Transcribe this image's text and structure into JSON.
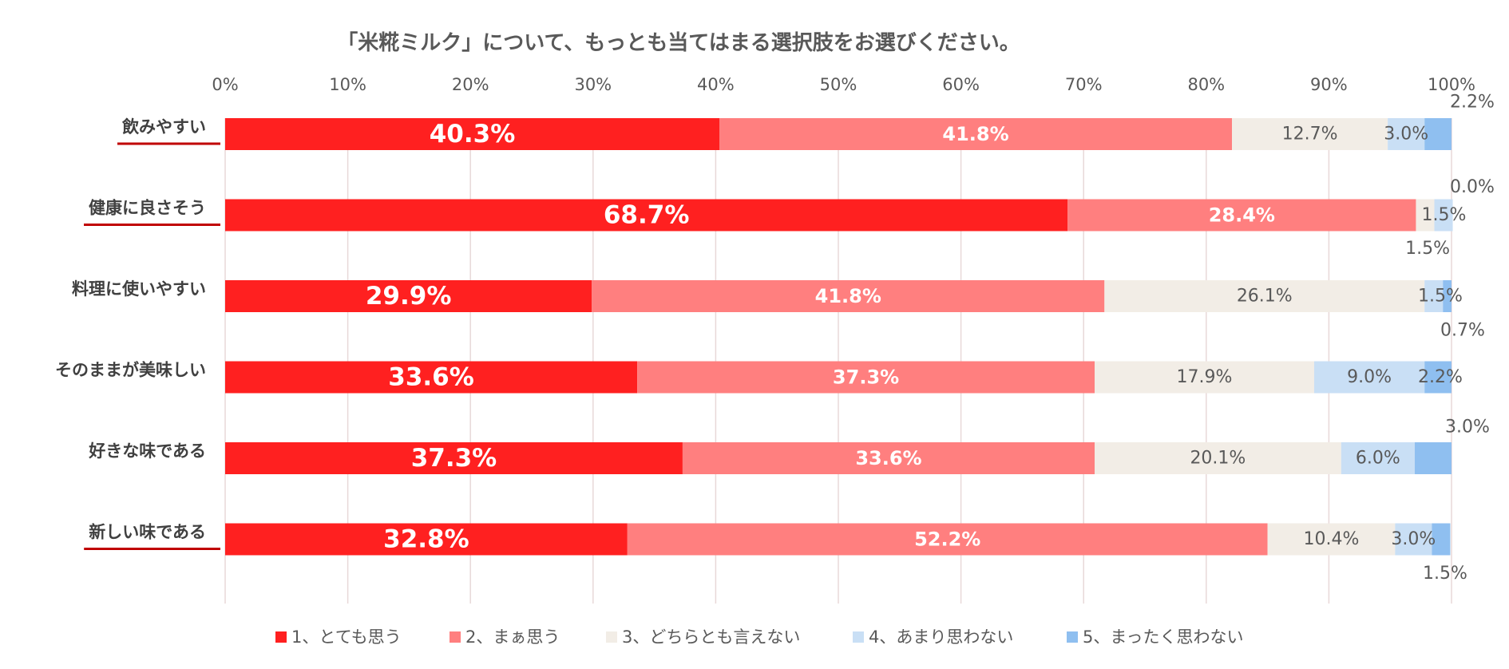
{
  "chart_data": {
    "type": "bar",
    "orientation": "horizontal",
    "stacked": "percent",
    "title": "「米糀ミルク」について、もっとも当てはまる選択肢をお選びください。",
    "xlabel": "",
    "ylabel": "",
    "xlim": [
      0,
      100
    ],
    "x_ticks": [
      "0%",
      "10%",
      "20%",
      "30%",
      "40%",
      "50%",
      "60%",
      "70%",
      "80%",
      "90%",
      "100%"
    ],
    "grid": true,
    "legend_position": "bottom",
    "categories": [
      "飲みやすい",
      "健康に良さそう",
      "料理に使いやすい",
      "そのままが美味しい",
      "好きな味である",
      "新しい味である"
    ],
    "highlighted_categories": [
      "飲みやすい",
      "健康に良さそう",
      "新しい味である"
    ],
    "series": [
      {
        "name": "1、とても思う",
        "color": "#ff2020",
        "values": [
          40.3,
          68.7,
          29.9,
          33.6,
          37.3,
          32.8
        ],
        "labels": [
          "40.3%",
          "68.7%",
          "29.9%",
          "33.6%",
          "37.3%",
          "32.8%"
        ]
      },
      {
        "name": "2、まぁ思う",
        "color": "#ff7f7f",
        "values": [
          41.8,
          28.4,
          41.8,
          37.3,
          33.6,
          52.2
        ],
        "labels": [
          "41.8%",
          "28.4%",
          "41.8%",
          "37.3%",
          "33.6%",
          "52.2%"
        ]
      },
      {
        "name": "3、どちらとも言えない",
        "color": "#f2ede6",
        "values": [
          12.7,
          1.5,
          26.1,
          17.9,
          20.1,
          10.4
        ],
        "labels": [
          "12.7%",
          "1.5%",
          "26.1%",
          "17.9%",
          "20.1%",
          "10.4%"
        ]
      },
      {
        "name": "4、あまり思わない",
        "color": "#c9dff5",
        "values": [
          3.0,
          1.5,
          1.5,
          9.0,
          6.0,
          3.0
        ],
        "labels": [
          "3.0%",
          "1.5%",
          "1.5%",
          "9.0%",
          "6.0%",
          "3.0%"
        ]
      },
      {
        "name": "5、まったく思わない",
        "color": "#8fbff0",
        "values": [
          2.2,
          0.0,
          0.7,
          2.2,
          3.0,
          1.5
        ],
        "labels": [
          "2.2%",
          "0.0%",
          "0.7%",
          "2.2%",
          "3.0%",
          "1.5%"
        ]
      }
    ]
  },
  "colors": {
    "title": "#595959",
    "ticks": "#595959",
    "grid": "#e8d8d8",
    "category_text": "#404040",
    "underline": "#c00000"
  }
}
